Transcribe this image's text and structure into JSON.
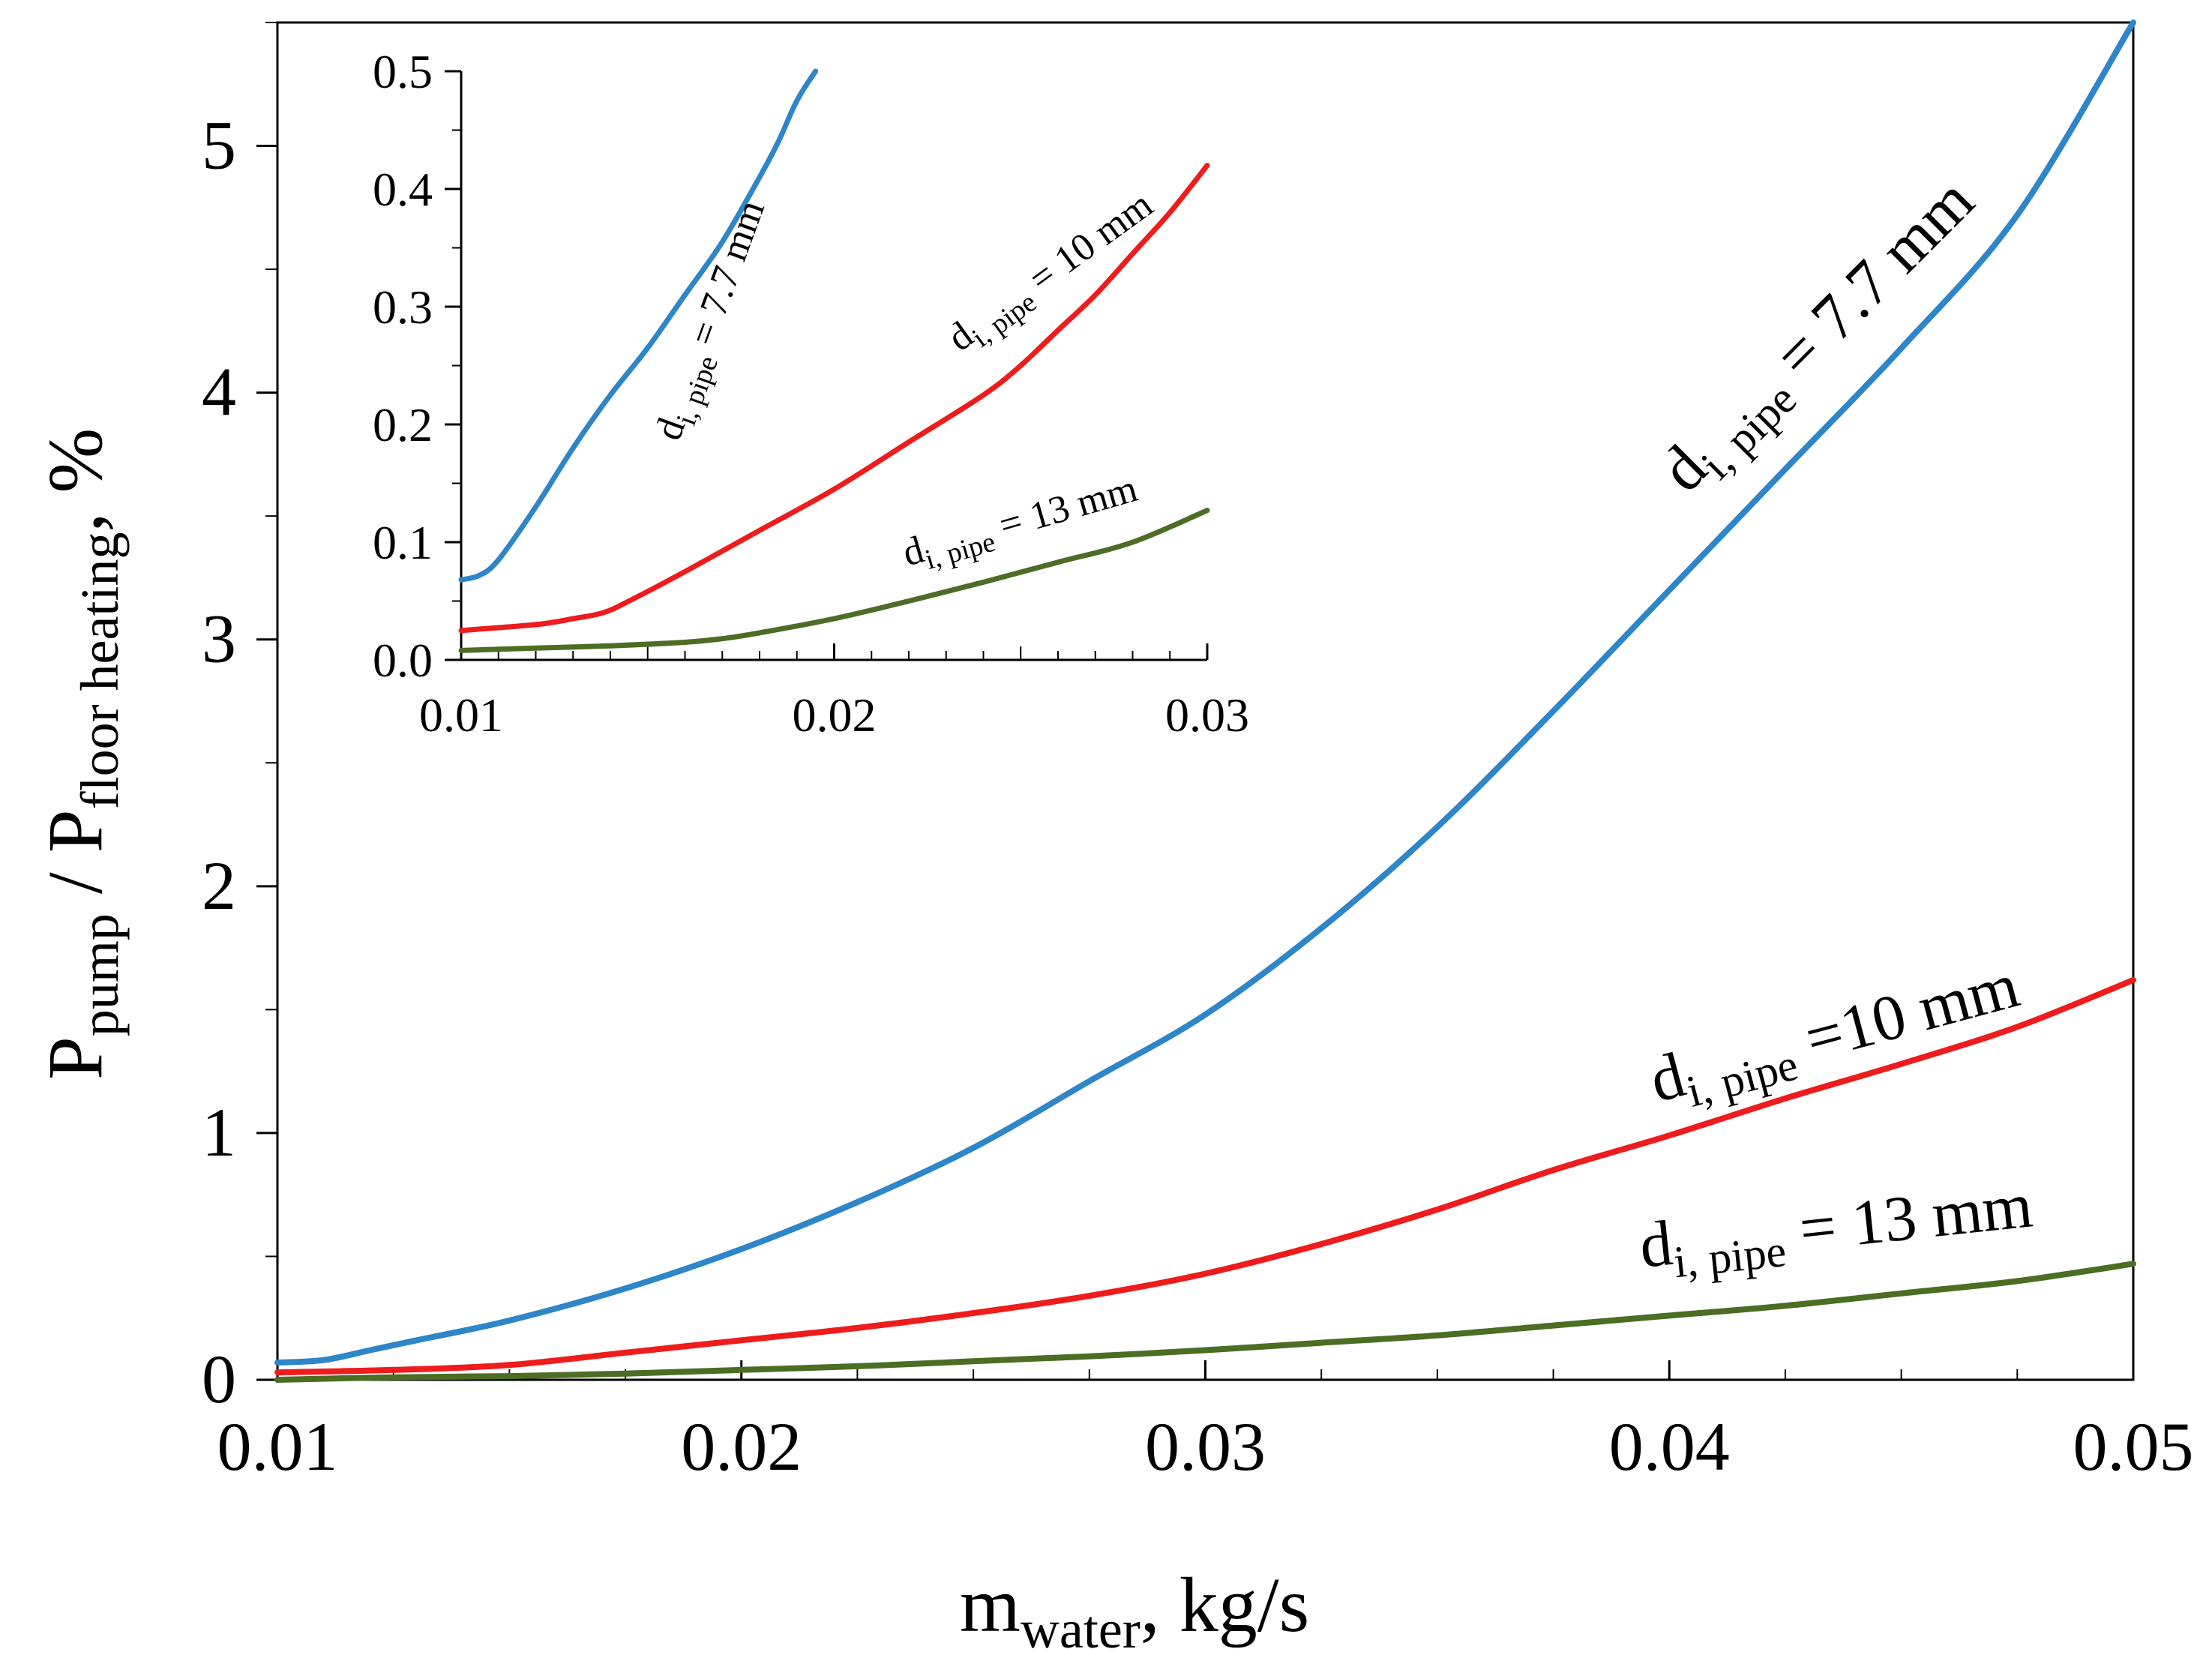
{
  "chart_data": [
    {
      "id": "main",
      "type": "line",
      "xlabel": {
        "main": "m",
        "sub": "water",
        "rest": ", kg/s"
      },
      "ylabel": {
        "p1": "P",
        "s1": "pump",
        "p2": " / P",
        "s2": "floor heating",
        "p3": ", %"
      },
      "xlim": [
        0.01,
        0.05
      ],
      "ylim": [
        0,
        5.5
      ],
      "x_ticks": [
        "0.01",
        "0.02",
        "0.03",
        "0.04",
        "0.05"
      ],
      "y_ticks": [
        "0",
        "1",
        "2",
        "3",
        "4",
        "5"
      ],
      "series": [
        {
          "name": "d_i,pipe = 7.7 mm",
          "color": "#2e86c8",
          "x": [
            0.01,
            0.011,
            0.012,
            0.013,
            0.015,
            0.0175,
            0.02,
            0.0225,
            0.025,
            0.0275,
            0.03,
            0.0325,
            0.035,
            0.0375,
            0.04,
            0.0425,
            0.045,
            0.0475,
            0.05
          ],
          "y": [
            0.07,
            0.08,
            0.12,
            0.16,
            0.24,
            0.37,
            0.53,
            0.72,
            0.94,
            1.21,
            1.48,
            1.83,
            2.24,
            2.71,
            3.2,
            3.69,
            4.18,
            4.72,
            5.5
          ]
        },
        {
          "name": "d_i,pipe =10 mm",
          "color": "#ee1c1c",
          "x": [
            0.01,
            0.0125,
            0.015,
            0.0175,
            0.02,
            0.0225,
            0.025,
            0.0275,
            0.03,
            0.0325,
            0.035,
            0.0375,
            0.04,
            0.0425,
            0.045,
            0.0475,
            0.05
          ],
          "y": [
            0.03,
            0.04,
            0.06,
            0.11,
            0.16,
            0.21,
            0.27,
            0.34,
            0.43,
            0.55,
            0.69,
            0.85,
            0.99,
            1.14,
            1.28,
            1.43,
            1.62
          ]
        },
        {
          "name": "d_i,pipe = 13 mm",
          "color": "#4c6d24",
          "x": [
            0.01,
            0.0125,
            0.015,
            0.0175,
            0.02,
            0.0225,
            0.025,
            0.0275,
            0.03,
            0.0325,
            0.035,
            0.0375,
            0.04,
            0.0425,
            0.045,
            0.0475,
            0.05
          ],
          "y": [
            0.0,
            0.01,
            0.015,
            0.025,
            0.04,
            0.055,
            0.075,
            0.095,
            0.12,
            0.15,
            0.18,
            0.22,
            0.26,
            0.3,
            0.35,
            0.4,
            0.47
          ]
        }
      ],
      "annotations": [
        {
          "text": "d",
          "sub": "i, pipe",
          "rest": " = 7.7 mm",
          "series": 0
        },
        {
          "text": "d",
          "sub": "i, pipe",
          "rest": " =10 mm",
          "series": 1
        },
        {
          "text": "d",
          "sub": "i, pipe",
          "rest": " = 13 mm",
          "series": 2
        }
      ]
    },
    {
      "id": "inset",
      "type": "line",
      "xlim": [
        0.01,
        0.03
      ],
      "ylim": [
        0,
        0.5
      ],
      "x_ticks": [
        "0.01",
        "0.02",
        "0.03"
      ],
      "y_ticks": [
        "0.0",
        "0.1",
        "0.2",
        "0.3",
        "0.4",
        "0.5"
      ],
      "series": [
        {
          "name": "d_i,pipe = 7.7 mm",
          "color": "#2e86c8",
          "x": [
            0.01,
            0.0105,
            0.011,
            0.012,
            0.013,
            0.014,
            0.015,
            0.016,
            0.017,
            0.018,
            0.0185,
            0.019,
            0.0195
          ],
          "y": [
            0.068,
            0.072,
            0.085,
            0.13,
            0.18,
            0.225,
            0.265,
            0.31,
            0.355,
            0.41,
            0.44,
            0.475,
            0.5
          ]
        },
        {
          "name": "d_i,pipe = 10 mm",
          "color": "#ee1c1c",
          "x": [
            0.01,
            0.012,
            0.013,
            0.0138,
            0.0145,
            0.016,
            0.018,
            0.02,
            0.022,
            0.024,
            0.025,
            0.026,
            0.027,
            0.028,
            0.029,
            0.03
          ],
          "y": [
            0.025,
            0.03,
            0.035,
            0.04,
            0.05,
            0.075,
            0.11,
            0.145,
            0.185,
            0.225,
            0.25,
            0.28,
            0.31,
            0.345,
            0.38,
            0.42
          ]
        },
        {
          "name": "d_i,pipe = 13 mm",
          "color": "#4c6d24",
          "x": [
            0.01,
            0.012,
            0.014,
            0.016,
            0.017,
            0.018,
            0.02,
            0.022,
            0.024,
            0.026,
            0.028,
            0.03
          ],
          "y": [
            0.008,
            0.01,
            0.012,
            0.015,
            0.018,
            0.023,
            0.035,
            0.05,
            0.066,
            0.083,
            0.1,
            0.127
          ]
        }
      ],
      "annotations": [
        {
          "text": "d",
          "sub": "i, pipe",
          "rest": " = 7.7 mm",
          "series": 0
        },
        {
          "text": "d",
          "sub": "i, pipe",
          "rest": " = 10 mm",
          "series": 1
        },
        {
          "text": "d",
          "sub": "i, pipe",
          "rest": " = 13 mm",
          "series": 2
        }
      ]
    }
  ]
}
